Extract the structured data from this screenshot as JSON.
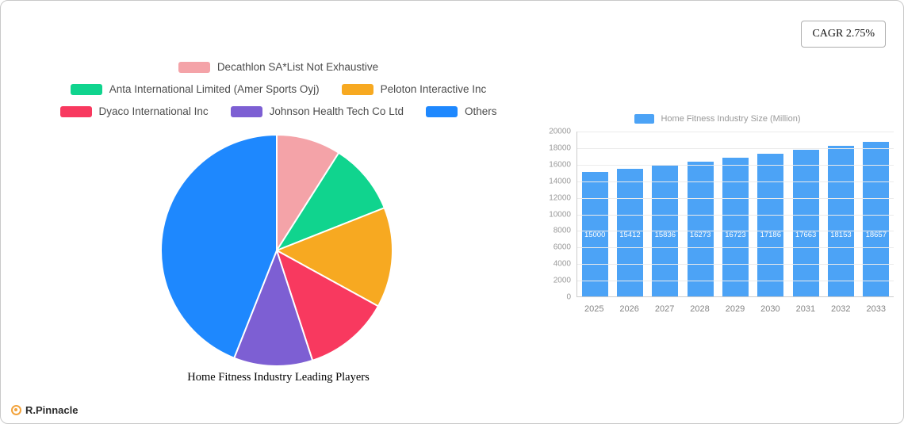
{
  "badge": {
    "cagr": "CAGR 2.75%"
  },
  "brand": {
    "name": "R.Pinnacle"
  },
  "chart_data": [
    {
      "type": "pie",
      "title": "Home Fitness Industry Leading Players",
      "start_angle_deg": 0,
      "direction": "clockwise",
      "legend_rows": [
        [
          0
        ],
        [
          1,
          2
        ],
        [
          3,
          4,
          5
        ]
      ],
      "slices": [
        {
          "label": "Decathlon SA*List Not Exhaustive",
          "value": 9,
          "color": "#F4A3A8"
        },
        {
          "label": "Anta International Limited (Amer Sports Oyj)",
          "value": 10,
          "color": "#10D48E"
        },
        {
          "label": "Peloton Interactive Inc",
          "value": 14,
          "color": "#F7A921"
        },
        {
          "label": "Dyaco International Inc",
          "value": 12,
          "color": "#F8395F"
        },
        {
          "label": "Johnson Health Tech Co  Ltd",
          "value": 11,
          "color": "#7D5FD3"
        },
        {
          "label": "Others",
          "value": 44,
          "color": "#1E88FE"
        }
      ]
    },
    {
      "type": "bar",
      "legend": "Home Fitness Industry Size (Million)",
      "categories": [
        "2025",
        "2026",
        "2027",
        "2028",
        "2029",
        "2030",
        "2031",
        "2032",
        "2033"
      ],
      "values": [
        15000,
        15412,
        15836,
        16273,
        16723,
        17186,
        17663,
        18153,
        18657
      ],
      "ylim": [
        0,
        20000
      ],
      "ytick_step": 2000,
      "bar_color": "#4CA3F6",
      "grid": true,
      "legend_position": "top"
    }
  ]
}
